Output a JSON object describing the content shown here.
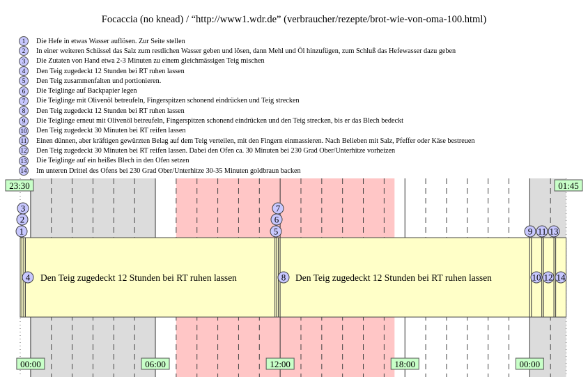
{
  "title": "Focaccia (no knead) / “http://www1.wdr.de” (verbraucher/rezepte/brot-wie-von-oma-100.html)",
  "steps": [
    {
      "n": "1",
      "text": "Die Hefe in etwas Wasser auflösen. Zur Seite stellen",
      "minutes": 5
    },
    {
      "n": "2",
      "text": "In einer weiteren Schüssel das Salz zum restlichen Wasser geben und lösen, dann Mehl und Öl hinzufügen, zum Schluß das Hefewasser dazu geben",
      "minutes": 5
    },
    {
      "n": "3",
      "text": "Die Zutaten von Hand etwa 2-3 Minuten zu einem gleichmässigen Teig mischen",
      "minutes": 5
    },
    {
      "n": "4",
      "text": "Den Teig zugedeckt 12 Stunden bei RT ruhen lassen",
      "minutes": 720
    },
    {
      "n": "5",
      "text": "Den Teig zusammenfalten und portionieren.",
      "minutes": 5
    },
    {
      "n": "6",
      "text": "Die Teiglinge auf Backpapier legen",
      "minutes": 5
    },
    {
      "n": "7",
      "text": "Die Teiglinge mit Olivenöl betreufeln, Fingerspitzen schonend eindrücken und Teig strecken",
      "minutes": 5
    },
    {
      "n": "8",
      "text": "Den Teig zugedeckt 12 Stunden bei RT ruhen lassen",
      "minutes": 720
    },
    {
      "n": "9",
      "text": "Die Teiglinge erneut mit Olivenöl betreufeln, Fingerspitzen schonend eindrücken und den Teig strecken, bis er das Blech bedeckt",
      "minutes": 5
    },
    {
      "n": "10",
      "text": "Den Teig zugedeckt 30 Minuten bei RT reifen lassen",
      "minutes": 30
    },
    {
      "n": "11",
      "text": "Einen dünnen, aber kräftigen gewürzten Belag auf dem Teig verteilen, mit den Fingern einmassieren. Nach Belieben mit Salz, Pfeffer oder Käse bestreuen",
      "minutes": 5
    },
    {
      "n": "12",
      "text": "Den Teig zugedeckt 30 Minuten bei RT reifen lassen. Dabei den Ofen ca. 30 Minuten bei 230 Grad Ober/Unterhitze vorheizen",
      "minutes": 30
    },
    {
      "n": "13",
      "text": "Die Teiglinge auf ein heißes Blech in den Ofen setzen",
      "minutes": 5
    },
    {
      "n": "14",
      "text": "Im unteren Drittel des Ofens bei 230 Grad Ober/Unterhitze 30-35 Minuten goldbraun backen",
      "minutes": 30
    }
  ],
  "timeline": {
    "start_label": "23:30",
    "end_label": "01:45",
    "hour_labels": [
      "00:00",
      "06:00",
      "12:00",
      "18:00",
      "00:00"
    ],
    "bar_labels": {
      "4": "Den Teig zugedeckt 12 Stunden bei RT ruhen lassen",
      "8": "Den Teig zugedeckt 12 Stunden bei RT ruhen lassen"
    },
    "night_bands": [
      [
        "00:00",
        "06:00"
      ],
      [
        "00:00",
        "01:45"
      ]
    ],
    "work_band": [
      "07:00",
      "17:30"
    ]
  },
  "colors": {
    "night": "#dcdcdc",
    "work": "#ffc6c6",
    "bar": "#ffffc8",
    "marker": "#c8c8ff",
    "timelabel": "#c8ffc8"
  }
}
